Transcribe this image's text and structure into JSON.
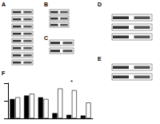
{
  "panels": [
    {
      "label": "A"
    },
    {
      "label": "B"
    },
    {
      "label": "C"
    },
    {
      "label": "D"
    },
    {
      "label": "E"
    },
    {
      "label": "F"
    }
  ],
  "chart_data": {
    "type": "bar",
    "categories": [
      null,
      null,
      null,
      null,
      null,
      null
    ],
    "series": [
      {
        "color": "#000000",
        "values": [
          55,
          65,
          60,
          15,
          10,
          8
        ]
      },
      {
        "color": "#ffffff",
        "values": [
          60,
          70,
          55,
          85,
          80,
          45
        ]
      }
    ],
    "ylim": [
      0,
      100
    ],
    "yticks": [
      0,
      50,
      100
    ],
    "grid": false,
    "tick_labels": false,
    "annotations": [
      {
        "text": "*",
        "category_index": 4,
        "y": 95
      }
    ]
  }
}
